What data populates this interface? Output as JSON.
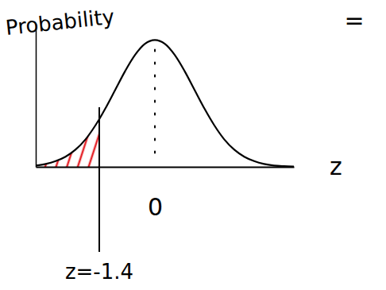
{
  "chart_data": {
    "type": "line",
    "x_label": "z",
    "y_label": "Probability",
    "x": [
      -3,
      -2.75,
      -2.5,
      -2.25,
      -2,
      -1.75,
      -1.5,
      -1.4,
      -1.25,
      -1,
      -0.75,
      -0.5,
      -0.25,
      0,
      0.25,
      0.5,
      0.75,
      1,
      1.25,
      1.5,
      1.75,
      2,
      2.25,
      2.5,
      2.75,
      3,
      3.25,
      3.5
    ],
    "values": [
      0.004,
      0.009,
      0.018,
      0.032,
      0.054,
      0.086,
      0.13,
      0.15,
      0.183,
      0.242,
      0.301,
      0.352,
      0.387,
      0.399,
      0.387,
      0.352,
      0.301,
      0.242,
      0.183,
      0.13,
      0.086,
      0.054,
      0.032,
      0.018,
      0.009,
      0.004,
      0.002,
      0.001
    ],
    "color": "#000000",
    "xlim": [
      -3,
      3.5
    ],
    "ylim": [
      0,
      0.45
    ],
    "xticks": [
      0
    ],
    "yticks": [],
    "tick_labels": "x",
    "grid": false,
    "annotations": [
      {
        "text": "z=-1.4",
        "x": -1.4
      },
      {
        "text": "="
      }
    ]
  }
}
